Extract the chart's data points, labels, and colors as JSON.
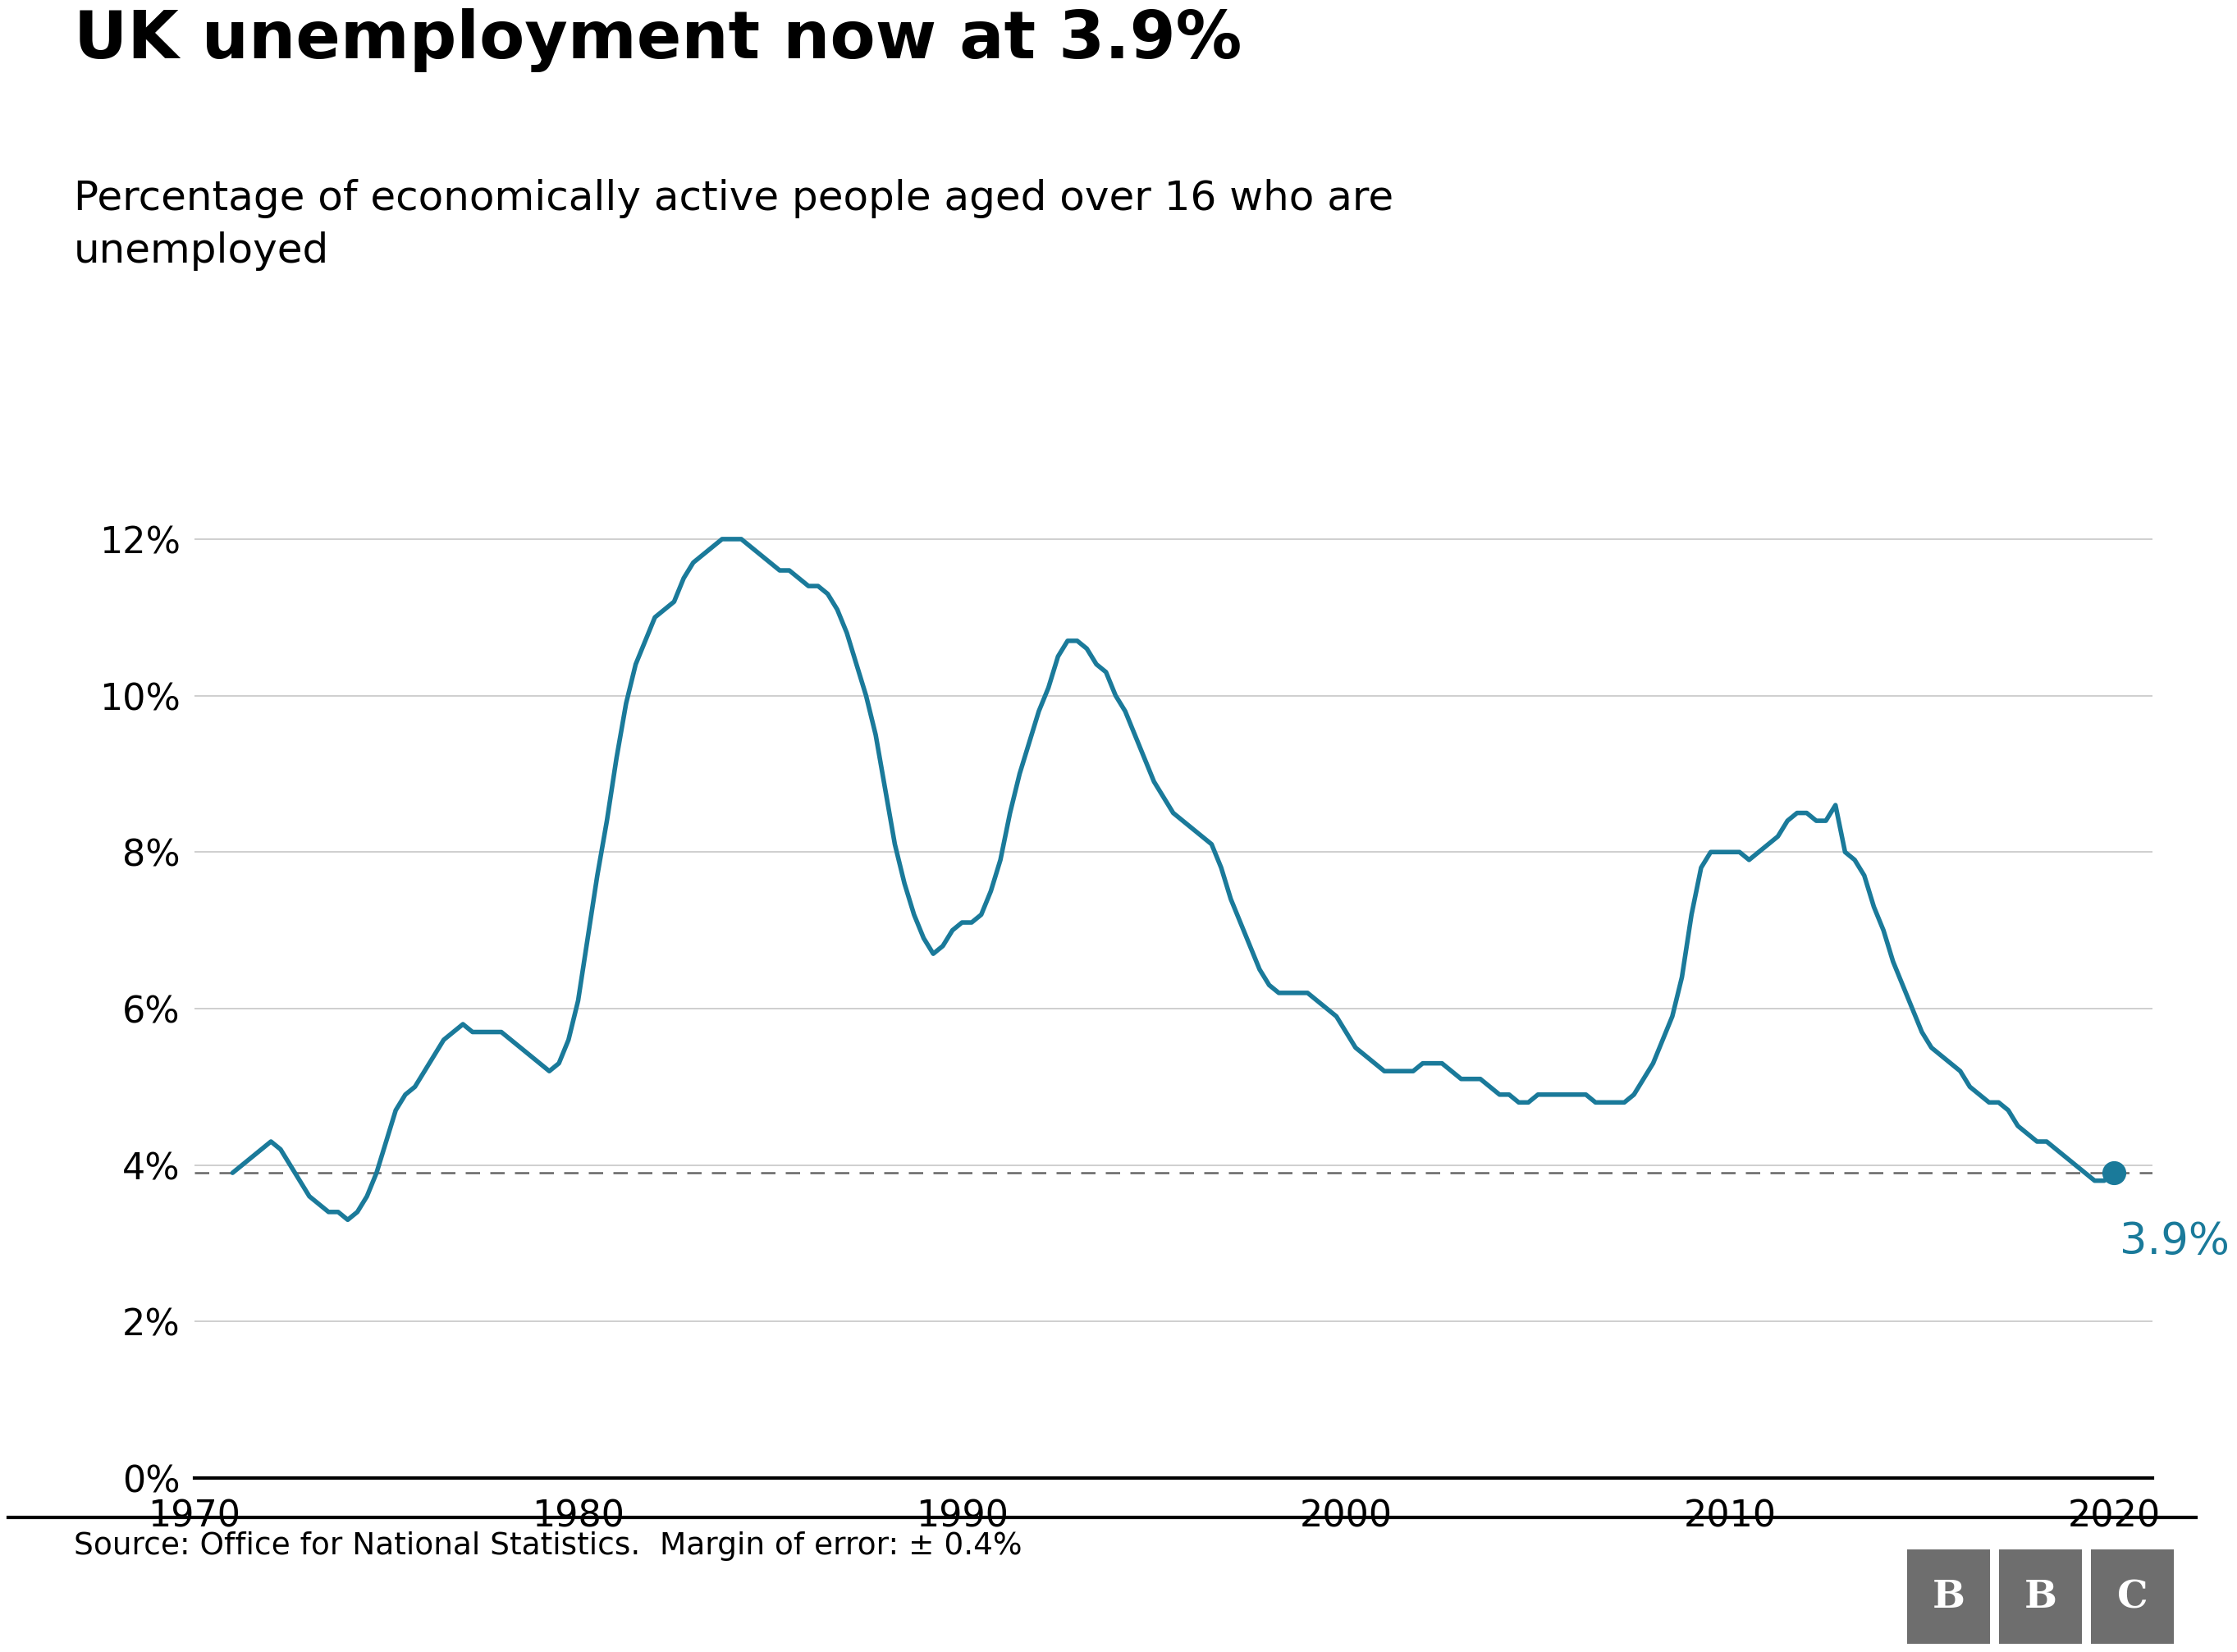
{
  "title": "UK unemployment now at 3.9%",
  "subtitle": "Percentage of economically active people aged over 16 who are\nunemployed",
  "source_text": "Source: Office for National Statistics.  Margin of error: ± 0.4%",
  "line_color": "#1a7a9a",
  "dashed_line_value": 3.9,
  "last_value": 3.9,
  "last_year": 2020.0,
  "annotation_text": "3.9%",
  "annotation_color": "#1a7a9a",
  "yticks": [
    0,
    2,
    4,
    6,
    8,
    10,
    12
  ],
  "ytick_labels": [
    "0%",
    "2%",
    "4%",
    "6%",
    "8%",
    "10%",
    "12%"
  ],
  "xticks": [
    1970,
    1980,
    1990,
    2000,
    2010,
    2020
  ],
  "xlim": [
    1970,
    2021
  ],
  "ylim": [
    0,
    13
  ],
  "background_color": "#ffffff",
  "bbc_color": "#6e6e6e",
  "title_fontsize": 58,
  "subtitle_fontsize": 36,
  "source_fontsize": 27,
  "tick_fontsize": 32,
  "annotation_fontsize": 38,
  "line_width": 4.0,
  "data": [
    [
      1971.0,
      3.9
    ],
    [
      1971.25,
      4.0
    ],
    [
      1971.5,
      4.1
    ],
    [
      1971.75,
      4.2
    ],
    [
      1972.0,
      4.3
    ],
    [
      1972.25,
      4.2
    ],
    [
      1972.5,
      4.0
    ],
    [
      1972.75,
      3.8
    ],
    [
      1973.0,
      3.6
    ],
    [
      1973.25,
      3.5
    ],
    [
      1973.5,
      3.4
    ],
    [
      1973.75,
      3.4
    ],
    [
      1974.0,
      3.3
    ],
    [
      1974.25,
      3.4
    ],
    [
      1974.5,
      3.6
    ],
    [
      1974.75,
      3.9
    ],
    [
      1975.0,
      4.3
    ],
    [
      1975.25,
      4.7
    ],
    [
      1975.5,
      4.9
    ],
    [
      1975.75,
      5.0
    ],
    [
      1976.0,
      5.2
    ],
    [
      1976.25,
      5.4
    ],
    [
      1976.5,
      5.6
    ],
    [
      1976.75,
      5.7
    ],
    [
      1977.0,
      5.8
    ],
    [
      1977.25,
      5.7
    ],
    [
      1977.5,
      5.7
    ],
    [
      1977.75,
      5.7
    ],
    [
      1978.0,
      5.7
    ],
    [
      1978.25,
      5.6
    ],
    [
      1978.5,
      5.5
    ],
    [
      1978.75,
      5.4
    ],
    [
      1979.0,
      5.3
    ],
    [
      1979.25,
      5.2
    ],
    [
      1979.5,
      5.3
    ],
    [
      1979.75,
      5.6
    ],
    [
      1980.0,
      6.1
    ],
    [
      1980.25,
      6.9
    ],
    [
      1980.5,
      7.7
    ],
    [
      1980.75,
      8.4
    ],
    [
      1981.0,
      9.2
    ],
    [
      1981.25,
      9.9
    ],
    [
      1981.5,
      10.4
    ],
    [
      1981.75,
      10.7
    ],
    [
      1982.0,
      11.0
    ],
    [
      1982.25,
      11.1
    ],
    [
      1982.5,
      11.2
    ],
    [
      1982.75,
      11.5
    ],
    [
      1983.0,
      11.7
    ],
    [
      1983.25,
      11.8
    ],
    [
      1983.5,
      11.9
    ],
    [
      1983.75,
      12.0
    ],
    [
      1984.0,
      12.0
    ],
    [
      1984.25,
      12.0
    ],
    [
      1984.5,
      11.9
    ],
    [
      1984.75,
      11.8
    ],
    [
      1985.0,
      11.7
    ],
    [
      1985.25,
      11.6
    ],
    [
      1985.5,
      11.6
    ],
    [
      1985.75,
      11.5
    ],
    [
      1986.0,
      11.4
    ],
    [
      1986.25,
      11.4
    ],
    [
      1986.5,
      11.3
    ],
    [
      1986.75,
      11.1
    ],
    [
      1987.0,
      10.8
    ],
    [
      1987.25,
      10.4
    ],
    [
      1987.5,
      10.0
    ],
    [
      1987.75,
      9.5
    ],
    [
      1988.0,
      8.8
    ],
    [
      1988.25,
      8.1
    ],
    [
      1988.5,
      7.6
    ],
    [
      1988.75,
      7.2
    ],
    [
      1989.0,
      6.9
    ],
    [
      1989.25,
      6.7
    ],
    [
      1989.5,
      6.8
    ],
    [
      1989.75,
      7.0
    ],
    [
      1990.0,
      7.1
    ],
    [
      1990.25,
      7.1
    ],
    [
      1990.5,
      7.2
    ],
    [
      1990.75,
      7.5
    ],
    [
      1991.0,
      7.9
    ],
    [
      1991.25,
      8.5
    ],
    [
      1991.5,
      9.0
    ],
    [
      1991.75,
      9.4
    ],
    [
      1992.0,
      9.8
    ],
    [
      1992.25,
      10.1
    ],
    [
      1992.5,
      10.5
    ],
    [
      1992.75,
      10.7
    ],
    [
      1993.0,
      10.7
    ],
    [
      1993.25,
      10.6
    ],
    [
      1993.5,
      10.4
    ],
    [
      1993.75,
      10.3
    ],
    [
      1994.0,
      10.0
    ],
    [
      1994.25,
      9.8
    ],
    [
      1994.5,
      9.5
    ],
    [
      1994.75,
      9.2
    ],
    [
      1995.0,
      8.9
    ],
    [
      1995.25,
      8.7
    ],
    [
      1995.5,
      8.5
    ],
    [
      1995.75,
      8.4
    ],
    [
      1996.0,
      8.3
    ],
    [
      1996.25,
      8.2
    ],
    [
      1996.5,
      8.1
    ],
    [
      1996.75,
      7.8
    ],
    [
      1997.0,
      7.4
    ],
    [
      1997.25,
      7.1
    ],
    [
      1997.5,
      6.8
    ],
    [
      1997.75,
      6.5
    ],
    [
      1998.0,
      6.3
    ],
    [
      1998.25,
      6.2
    ],
    [
      1998.5,
      6.2
    ],
    [
      1998.75,
      6.2
    ],
    [
      1999.0,
      6.2
    ],
    [
      1999.25,
      6.1
    ],
    [
      1999.5,
      6.0
    ],
    [
      1999.75,
      5.9
    ],
    [
      2000.0,
      5.7
    ],
    [
      2000.25,
      5.5
    ],
    [
      2000.5,
      5.4
    ],
    [
      2000.75,
      5.3
    ],
    [
      2001.0,
      5.2
    ],
    [
      2001.25,
      5.2
    ],
    [
      2001.5,
      5.2
    ],
    [
      2001.75,
      5.2
    ],
    [
      2002.0,
      5.3
    ],
    [
      2002.25,
      5.3
    ],
    [
      2002.5,
      5.3
    ],
    [
      2002.75,
      5.2
    ],
    [
      2003.0,
      5.1
    ],
    [
      2003.25,
      5.1
    ],
    [
      2003.5,
      5.1
    ],
    [
      2003.75,
      5.0
    ],
    [
      2004.0,
      4.9
    ],
    [
      2004.25,
      4.9
    ],
    [
      2004.5,
      4.8
    ],
    [
      2004.75,
      4.8
    ],
    [
      2005.0,
      4.9
    ],
    [
      2005.25,
      4.9
    ],
    [
      2005.5,
      4.9
    ],
    [
      2005.75,
      4.9
    ],
    [
      2006.0,
      4.9
    ],
    [
      2006.25,
      4.9
    ],
    [
      2006.5,
      4.8
    ],
    [
      2006.75,
      4.8
    ],
    [
      2007.0,
      4.8
    ],
    [
      2007.25,
      4.8
    ],
    [
      2007.5,
      4.9
    ],
    [
      2007.75,
      5.1
    ],
    [
      2008.0,
      5.3
    ],
    [
      2008.25,
      5.6
    ],
    [
      2008.5,
      5.9
    ],
    [
      2008.75,
      6.4
    ],
    [
      2009.0,
      7.2
    ],
    [
      2009.25,
      7.8
    ],
    [
      2009.5,
      8.0
    ],
    [
      2009.75,
      8.0
    ],
    [
      2010.0,
      8.0
    ],
    [
      2010.25,
      8.0
    ],
    [
      2010.5,
      7.9
    ],
    [
      2010.75,
      8.0
    ],
    [
      2011.0,
      8.1
    ],
    [
      2011.25,
      8.2
    ],
    [
      2011.5,
      8.4
    ],
    [
      2011.75,
      8.5
    ],
    [
      2012.0,
      8.5
    ],
    [
      2012.25,
      8.4
    ],
    [
      2012.5,
      8.4
    ],
    [
      2012.75,
      8.6
    ],
    [
      2013.0,
      8.0
    ],
    [
      2013.25,
      7.9
    ],
    [
      2013.5,
      7.7
    ],
    [
      2013.75,
      7.3
    ],
    [
      2014.0,
      7.0
    ],
    [
      2014.25,
      6.6
    ],
    [
      2014.5,
      6.3
    ],
    [
      2014.75,
      6.0
    ],
    [
      2015.0,
      5.7
    ],
    [
      2015.25,
      5.5
    ],
    [
      2015.5,
      5.4
    ],
    [
      2015.75,
      5.3
    ],
    [
      2016.0,
      5.2
    ],
    [
      2016.25,
      5.0
    ],
    [
      2016.5,
      4.9
    ],
    [
      2016.75,
      4.8
    ],
    [
      2017.0,
      4.8
    ],
    [
      2017.25,
      4.7
    ],
    [
      2017.5,
      4.5
    ],
    [
      2017.75,
      4.4
    ],
    [
      2018.0,
      4.3
    ],
    [
      2018.25,
      4.3
    ],
    [
      2018.5,
      4.2
    ],
    [
      2018.75,
      4.1
    ],
    [
      2019.0,
      4.0
    ],
    [
      2019.25,
      3.9
    ],
    [
      2019.5,
      3.8
    ],
    [
      2019.75,
      3.8
    ],
    [
      2020.0,
      3.9
    ]
  ]
}
